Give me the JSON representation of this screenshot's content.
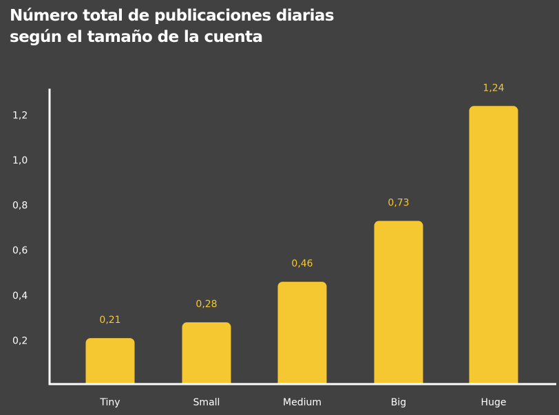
{
  "chart_data": {
    "type": "bar",
    "title": [
      "Número total de publicaciones diarias",
      "según el tamaño de la cuenta"
    ],
    "xlabel": "",
    "ylabel": "",
    "categories": [
      "Tiny",
      "Small",
      "Medium",
      "Big",
      "Huge"
    ],
    "values": [
      0.21,
      0.28,
      0.46,
      0.73,
      1.24
    ],
    "value_labels": [
      "0,21",
      "0,28",
      "0,46",
      "0,73",
      "1,24"
    ],
    "y_ticks": [
      {
        "value": 0.2,
        "label": "0,2"
      },
      {
        "value": 0.4,
        "label": "0,4"
      },
      {
        "value": 0.6,
        "label": "0,6"
      },
      {
        "value": 0.8,
        "label": "0,8"
      },
      {
        "value": 1.0,
        "label": "1,0"
      },
      {
        "value": 1.2,
        "label": "1,2"
      }
    ],
    "ylim": [
      0,
      1.3
    ],
    "grid": false,
    "legend": "none",
    "colors": {
      "background": "#414141",
      "bar": "#f5c832",
      "value_label": "#f5c832",
      "axis": "#ffffff",
      "text": "#ffffff"
    }
  }
}
